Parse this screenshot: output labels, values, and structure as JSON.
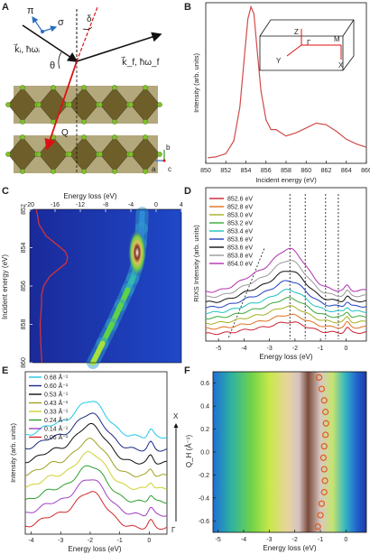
{
  "panelA": {
    "letter": "A",
    "labels": {
      "pi": "π",
      "sigma": "σ",
      "delta": "δ",
      "theta": "θ",
      "q": "Q",
      "ki": "k⃗ᵢ, ħωᵢ",
      "kf": "k⃗_f, ħω_f",
      "axis_b": "b",
      "axis_a": "a",
      "axis_c": "c"
    },
    "colors": {
      "octahedron": "#8a7a3a",
      "oxygen": "#7ec22a",
      "arrow": "#d11",
      "polarization": "#2a6fc4"
    }
  },
  "panelB": {
    "letter": "B",
    "inset_labels": {
      "gamma": "Γ",
      "z": "Z",
      "m": "M",
      "x": "X",
      "y": "Y"
    },
    "chart_data": {
      "type": "line",
      "title": "",
      "xlabel": "Incident energy (eV)",
      "ylabel": "Intensity (arb. units)",
      "xlim": [
        850,
        866
      ],
      "ylim": [
        0,
        1
      ],
      "xticks": [
        850,
        852,
        854,
        856,
        858,
        860,
        862,
        864,
        866
      ],
      "color": "#d14a4a",
      "x": [
        850.2,
        851,
        852,
        852.8,
        853.4,
        853.9,
        854.2,
        854.5,
        854.8,
        855.1,
        855.5,
        856,
        856.5,
        857,
        857.5,
        858,
        859,
        860,
        861,
        862,
        863,
        864,
        865,
        866
      ],
      "y": [
        0.035,
        0.04,
        0.06,
        0.14,
        0.35,
        0.7,
        0.9,
        0.975,
        0.93,
        0.72,
        0.45,
        0.27,
        0.21,
        0.21,
        0.19,
        0.17,
        0.19,
        0.22,
        0.25,
        0.24,
        0.2,
        0.15,
        0.12,
        0.1
      ]
    }
  },
  "panelC": {
    "letter": "C",
    "chart_data": {
      "type": "heatmap",
      "title": "",
      "xlabel": "Energy loss (eV)",
      "ylabel": "Incident energy (eV)",
      "xlim": [
        -20,
        4
      ],
      "ylim": [
        852,
        860
      ],
      "xticks": [
        -20,
        -16,
        -12,
        -8,
        -4,
        0,
        4
      ],
      "yticks": [
        852,
        854,
        856,
        858,
        860
      ],
      "ridge": [
        [
          852.2,
          -2.2
        ],
        [
          853,
          -2.3
        ],
        [
          853.8,
          -2.5
        ],
        [
          854.4,
          -2.7
        ],
        [
          855,
          -3.1
        ],
        [
          855.6,
          -3.7
        ],
        [
          856.2,
          -4.5
        ],
        [
          857,
          -5.6
        ],
        [
          858,
          -7
        ],
        [
          859,
          -8.5
        ],
        [
          860,
          -10
        ]
      ],
      "overlay_curve": "XAS"
    }
  },
  "panelD": {
    "letter": "D",
    "chart_data": {
      "type": "line",
      "title": "",
      "xlabel": "Energy loss (eV)",
      "ylabel": "RIXS Intensity (arb. units)",
      "xlim": [
        -5.5,
        0.8
      ],
      "xticks": [
        -5,
        -4,
        -3,
        -2,
        -1,
        0
      ],
      "series": [
        {
          "name": "852.6 eV",
          "color": "#cc2233",
          "offset": 0.0,
          "peak": 0.55
        },
        {
          "name": "852.8 eV",
          "color": "#e07020",
          "offset": 0.6,
          "peak": 0.65
        },
        {
          "name": "853.0 eV",
          "color": "#a5b020",
          "offset": 1.2,
          "peak": 0.8
        },
        {
          "name": "853.2 eV",
          "color": "#38a838",
          "offset": 1.8,
          "peak": 0.95
        },
        {
          "name": "853.4 eV",
          "color": "#20c0c0",
          "offset": 2.4,
          "peak": 1.1
        },
        {
          "name": "853.6 eV",
          "color": "#2040c0",
          "offset": 3.0,
          "peak": 1.3
        },
        {
          "name": "853.6 eV",
          "color": "#111111",
          "offset": 3.6,
          "peak": 1.55
        },
        {
          "name": "853.8 eV",
          "color": "#999999",
          "offset": 4.2,
          "peak": 1.8
        },
        {
          "name": "854.0 eV",
          "color": "#b030b0",
          "offset": 4.8,
          "peak": 2.1
        }
      ],
      "dotted_lines_x": [
        -2.2,
        -1.6,
        -0.8,
        -0.3
      ]
    }
  },
  "panelE": {
    "letter": "E",
    "side_labels": {
      "top": "X",
      "bottom": "Γ"
    },
    "chart_data": {
      "type": "line",
      "title": "",
      "xlabel": "Energy loss (eV)",
      "ylabel": "Intensity (arb. units)",
      "xlim": [
        -4.2,
        0.6
      ],
      "xticks": [
        -4,
        -3,
        -2,
        -1,
        0
      ],
      "series": [
        {
          "name": "0.68 Å⁻¹",
          "color": "#20c8e8",
          "offset": 5.6,
          "peak": 1.0
        },
        {
          "name": "0.60 Å⁻¹",
          "color": "#1a2a80",
          "offset": 4.8,
          "peak": 1.0
        },
        {
          "name": "0.53 Å⁻¹",
          "color": "#111111",
          "offset": 4.0,
          "peak": 1.05
        },
        {
          "name": "0.43 Å⁻¹",
          "color": "#a0a020",
          "offset": 3.2,
          "peak": 1.0
        },
        {
          "name": "0.33 Å⁻¹",
          "color": "#d0d030",
          "offset": 2.4,
          "peak": 1.0
        },
        {
          "name": "0.24 Å⁻¹",
          "color": "#30a030",
          "offset": 1.6,
          "peak": 1.0
        },
        {
          "name": "0.14 Å⁻¹",
          "color": "#a040c0",
          "offset": 0.8,
          "peak": 1.0
        },
        {
          "name": "0.06 Å⁻¹",
          "color": "#d02a2a",
          "offset": 0.0,
          "peak": 1.0
        }
      ]
    }
  },
  "panelF": {
    "letter": "F",
    "chart_data": {
      "type": "heatmap",
      "title": "",
      "xlabel": "Energy loss (eV)",
      "ylabel": "Q_H (Å⁻¹)",
      "xlim": [
        -5.2,
        0.8
      ],
      "ylim": [
        -0.7,
        0.7
      ],
      "xticks": [
        -5,
        -4,
        -3,
        -2,
        -1,
        0
      ],
      "yticks": [
        -0.6,
        -0.4,
        -0.2,
        0.0,
        0.2,
        0.4,
        0.6
      ],
      "circles": [
        [
          0.65,
          -1.05
        ],
        [
          0.55,
          -0.95
        ],
        [
          0.45,
          -0.85
        ],
        [
          0.35,
          -0.8
        ],
        [
          0.25,
          -0.78
        ],
        [
          0.15,
          -0.8
        ],
        [
          0.05,
          -0.85
        ],
        [
          -0.05,
          -0.88
        ],
        [
          -0.15,
          -0.85
        ],
        [
          -0.25,
          -0.82
        ],
        [
          -0.35,
          -0.85
        ],
        [
          -0.45,
          -0.95
        ],
        [
          -0.55,
          -1.0
        ],
        [
          -0.65,
          -1.1
        ]
      ]
    }
  }
}
